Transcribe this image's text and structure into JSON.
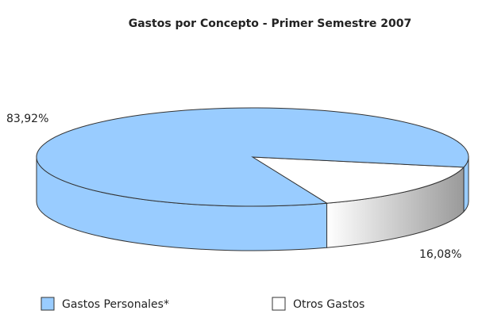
{
  "chart_data": {
    "type": "pie",
    "title": "Gastos por Concepto - Primer Semestre 2007",
    "categories": [
      "Gastos Personales*",
      "Otros Gastos"
    ],
    "values": [
      83.92,
      16.08
    ],
    "value_labels": [
      "83,92%",
      "16,08%"
    ],
    "colors": [
      "#99ccff",
      "#ffffff"
    ],
    "legend": "bottom"
  }
}
